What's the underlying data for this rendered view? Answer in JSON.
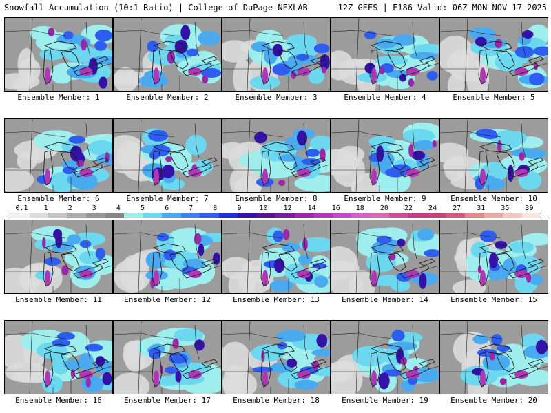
{
  "header": {
    "left": "Snowfall Accumulation (10:1 Ratio) | College of DuPage NEXLAB",
    "right": "12Z GEFS | F186 Valid: 06Z MON NOV 17 2025"
  },
  "panels": [
    {
      "member": 1,
      "caption": "Ensemble Member: 1"
    },
    {
      "member": 2,
      "caption": "Ensemble Member: 2"
    },
    {
      "member": 3,
      "caption": "Ensemble Member: 3"
    },
    {
      "member": 4,
      "caption": "Ensemble Member: 4"
    },
    {
      "member": 5,
      "caption": "Ensemble Member: 5"
    },
    {
      "member": 6,
      "caption": "Ensemble Member: 6"
    },
    {
      "member": 7,
      "caption": "Ensemble Member: 7"
    },
    {
      "member": 8,
      "caption": "Ensemble Member: 8"
    },
    {
      "member": 9,
      "caption": "Ensemble Member: 9"
    },
    {
      "member": 10,
      "caption": "Ensemble Member: 10"
    },
    {
      "member": 11,
      "caption": "Ensemble Member: 11"
    },
    {
      "member": 12,
      "caption": "Ensemble Member: 12"
    },
    {
      "member": 13,
      "caption": "Ensemble Member: 13"
    },
    {
      "member": 14,
      "caption": "Ensemble Member: 14"
    },
    {
      "member": 15,
      "caption": "Ensemble Member: 15"
    },
    {
      "member": 16,
      "caption": "Ensemble Member: 16"
    },
    {
      "member": 17,
      "caption": "Ensemble Member: 17"
    },
    {
      "member": 18,
      "caption": "Ensemble Member: 18"
    },
    {
      "member": 19,
      "caption": "Ensemble Member: 19"
    },
    {
      "member": 20,
      "caption": "Ensemble Member: 20"
    }
  ],
  "colorbar": {
    "labels": [
      "0.1",
      "1",
      "2",
      "3",
      "4",
      "5",
      "6",
      "7",
      "8",
      "9",
      "10",
      "12",
      "14",
      "16",
      "18",
      "20",
      "22",
      "24",
      "27",
      "31",
      "35",
      "39"
    ],
    "colors": [
      "#f2f2f2",
      "#dcdcdc",
      "#c4c4c4",
      "#adadad",
      "#979797",
      "#868686",
      "#9eeeee",
      "#6cd8f0",
      "#4aaaf0",
      "#3a82f0",
      "#2e5df0",
      "#1c2ee0",
      "#3412a8",
      "#5a1490",
      "#7a1c9c",
      "#9a28a8",
      "#b036b6",
      "#c44ac6",
      "#d060cc",
      "#d46cb4",
      "#cf4c98",
      "#c83a84",
      "#c8427a",
      "#d05a7c",
      "#e08a8a",
      "#eaa8a0",
      "#f3c8be",
      "#fbe6de"
    ]
  },
  "colors": {
    "background": "#9c9c9c",
    "lakes": "#8fa6b0",
    "border": "#1a1a1a"
  }
}
